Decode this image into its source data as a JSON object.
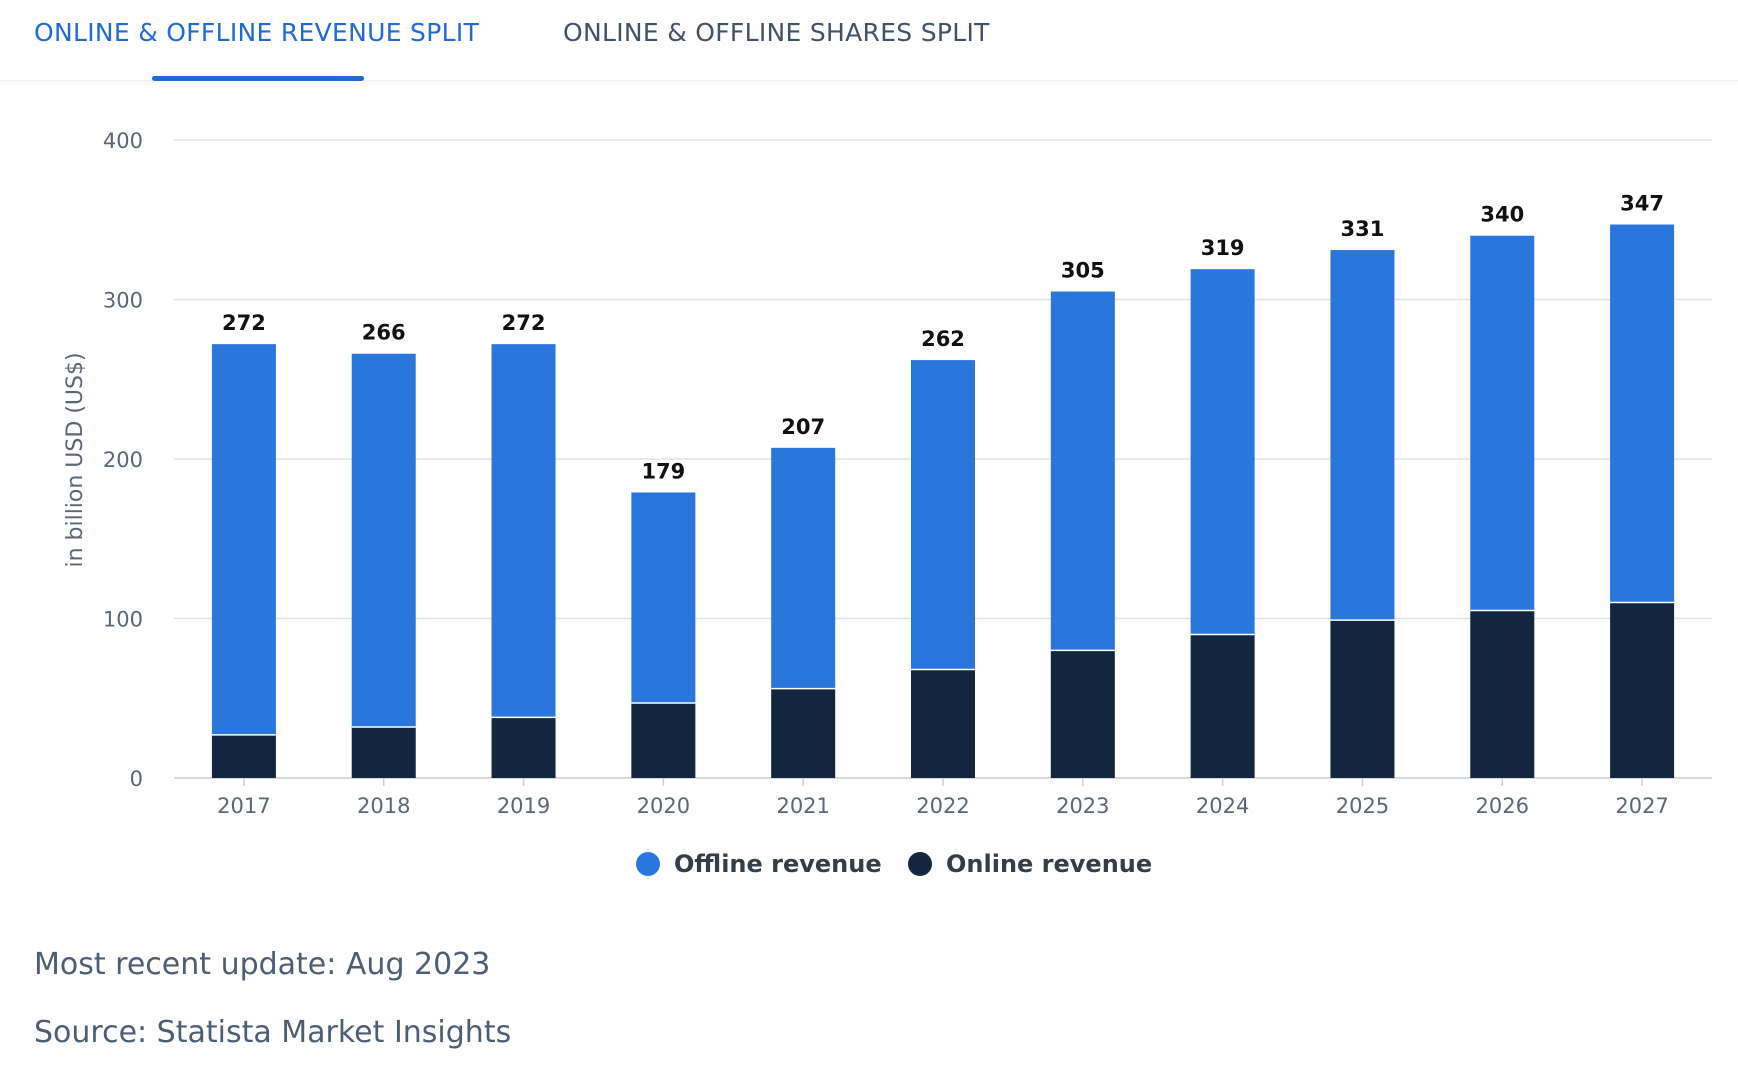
{
  "tabs": [
    {
      "label": "ONLINE & OFFLINE REVENUE SPLIT",
      "active": true
    },
    {
      "label": "ONLINE & OFFLINE SHARES SPLIT",
      "active": false
    }
  ],
  "colors": {
    "offline": "#2976dd",
    "online": "#12263f",
    "active_tab": "#1f6ad6",
    "grid": "#dfe3e8"
  },
  "chart_data": {
    "type": "bar",
    "stacked": true,
    "categories": [
      "2017",
      "2018",
      "2019",
      "2020",
      "2021",
      "2022",
      "2023",
      "2024",
      "2025",
      "2026",
      "2027"
    ],
    "series": [
      {
        "name": "Offline revenue",
        "values": [
          245,
          234,
          234,
          132,
          151,
          194,
          225,
          229,
          232,
          235,
          237
        ]
      },
      {
        "name": "Online revenue",
        "values": [
          27,
          32,
          38,
          47,
          56,
          68,
          80,
          90,
          99,
          105,
          110
        ]
      }
    ],
    "totals": [
      "272",
      "266",
      "272",
      "179",
      "207",
      "262",
      "305",
      "319",
      "331",
      "340",
      "347"
    ],
    "ylabel": "in billion USD (US$)",
    "xlabel": "",
    "ylim": [
      0,
      400
    ],
    "yticks": [
      "0",
      "100",
      "200",
      "300",
      "400"
    ],
    "grid": true,
    "legend_position": "bottom-center"
  },
  "legend": {
    "offline_label": "Offline revenue",
    "online_label": "Online revenue"
  },
  "footer": {
    "update": "Most recent update: Aug 2023",
    "source": "Source: Statista Market Insights"
  }
}
